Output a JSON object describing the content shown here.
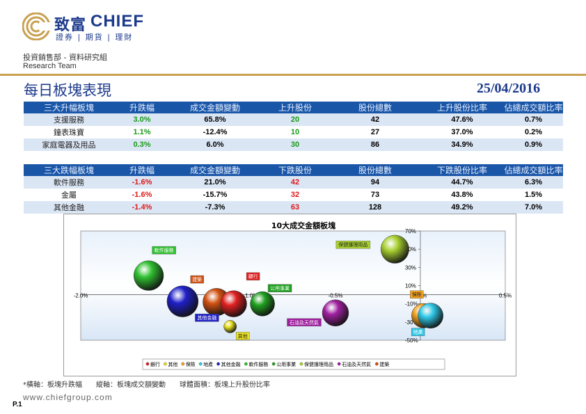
{
  "header": {
    "brand_cn": "致富",
    "brand_en": "CHIEF",
    "brand_sub": "證券 | 期貨 | 理財",
    "department": "投資銷售部 - 資料研究組",
    "team": "Research Team",
    "title": "每日板塊表現",
    "date": "25/04/2016"
  },
  "table_up": {
    "headers": [
      "三大升幅板塊",
      "升跌幅",
      "成交金額變動",
      "上升股份",
      "股份總數",
      "上升股份比率",
      "佔總成交額比率"
    ],
    "rows": [
      [
        "支援服務",
        "3.0%",
        "65.8%",
        "20",
        "42",
        "47.6%",
        "0.7%"
      ],
      [
        "鐘表珠寶",
        "1.1%",
        "-12.4%",
        "10",
        "27",
        "37.0%",
        "0.2%"
      ],
      [
        "家庭電器及用品",
        "0.3%",
        "6.0%",
        "30",
        "86",
        "34.9%",
        "0.9%"
      ]
    ]
  },
  "table_down": {
    "headers": [
      "三大跌幅板塊",
      "升跌幅",
      "成交金額變動",
      "下跌股份",
      "股份總數",
      "下跌股份比率",
      "佔總成交額比率"
    ],
    "rows": [
      [
        "軟件服務",
        "-1.6%",
        "21.0%",
        "42",
        "94",
        "44.7%",
        "6.3%"
      ],
      [
        "金屬",
        "-1.6%",
        "-15.7%",
        "32",
        "73",
        "43.8%",
        "1.5%"
      ],
      [
        "其他金融",
        "-1.4%",
        "-7.3%",
        "63",
        "128",
        "49.2%",
        "7.0%"
      ]
    ]
  },
  "chart_data": {
    "type": "bubble",
    "title": "10大成交金額板塊",
    "xlim": [
      -2.0,
      0.5
    ],
    "ylim": [
      -50,
      70
    ],
    "x_ticks": [
      "-2.0%",
      "-1.0%",
      "-0.5%",
      "0.0%",
      "0.5%"
    ],
    "x_tick_values": [
      -2.0,
      -1.0,
      -0.5,
      0.0,
      0.5
    ],
    "y_ticks": [
      "70%",
      "50%",
      "30%",
      "10%",
      "-10%",
      "-30%",
      "-50%"
    ],
    "y_tick_values": [
      70,
      50,
      30,
      10,
      -10,
      -30,
      -50
    ],
    "legend_position": "bottom",
    "points": [
      {
        "name": "銀行",
        "x": -1.1,
        "y": -10,
        "size": 35,
        "color": "#e02020"
      },
      {
        "name": "其他",
        "x": -1.12,
        "y": -35,
        "size": 8,
        "color": "#e8e020"
      },
      {
        "name": "保險",
        "x": 0.02,
        "y": -23,
        "size": 30,
        "color": "#f0a020"
      },
      {
        "name": "地產",
        "x": 0.06,
        "y": -23,
        "size": 32,
        "color": "#30c8e8"
      },
      {
        "name": "其他金融",
        "x": -1.4,
        "y": -7.3,
        "size": 49.2,
        "color": "#2020c8"
      },
      {
        "name": "軟件服務",
        "x": -1.6,
        "y": 21,
        "size": 44.7,
        "color": "#30c030"
      },
      {
        "name": "公用事業",
        "x": -0.93,
        "y": -10,
        "size": 30,
        "color": "#20a020"
      },
      {
        "name": "保健護理用品",
        "x": -0.15,
        "y": 50,
        "size": 40,
        "color": "#a8d030"
      },
      {
        "name": "石油及天然氣",
        "x": -0.5,
        "y": -20,
        "size": 35,
        "color": "#a020a0"
      },
      {
        "name": "建築",
        "x": -1.2,
        "y": -8,
        "size": 38,
        "color": "#d05010"
      }
    ],
    "legend": [
      "銀行",
      "其他",
      "保險",
      "地產",
      "其他金融",
      "軟件服務",
      "公用事業",
      "保健護理用品",
      "石油及天然氣",
      "建築"
    ]
  },
  "footnote": "*橫軸：板塊升跌幅　　縱軸：板塊成交額變動　　球體面積：板塊上升股份比率",
  "website": "www.chiefgroup.com",
  "page_num": "P.1",
  "colors": {
    "brand": "#1c3a8c",
    "header_fill": "#1a56a8",
    "stripe": "#dbe6f5",
    "gold": "#c8a050"
  }
}
